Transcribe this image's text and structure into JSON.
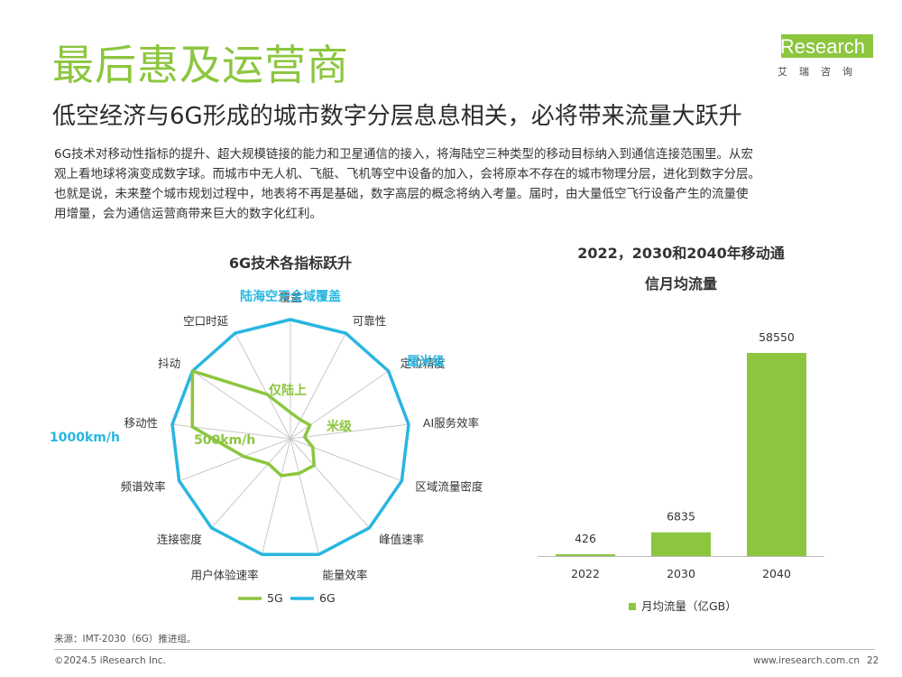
{
  "header": {
    "title": "最后惠及运营商",
    "subtitle": "低空经济与6G形成的城市数字分层息息相关，必将带来流量大跃升"
  },
  "logo": {
    "text": "iResearch",
    "sub": "艾瑞咨询"
  },
  "description": [
    "6G技术对移动性指标的提升、超大规模链接的能力和卫星通信的接入，将海陆空三种类型的移动目标纳入到通信连接范围里。从宏",
    "观上看地球将演变成数字球。而城市中无人机、飞艇、飞机等空中设备的加入，会将原本不存在的城市物理分层，进化到数字分层。",
    "也就是说，未来整个城市规划过程中，地表将不再是基础，数字高层的概念将纳入考量。届时，由大量低空飞行设备产生的流量使",
    "用增量，会为通信运营商带来巨大的数字化红利。"
  ],
  "footer": {
    "source": "来源：IMT-2030（6G）推进组。",
    "copyright": "©2024.5 iResearch Inc.",
    "website": "www.iresearch.com.cn",
    "page": "22"
  },
  "colors": {
    "green": "#8cc63f",
    "cyan": "#29b6e0",
    "text": "#333333",
    "grid": "#bbbbbb"
  },
  "chart_data": [
    {
      "type": "radar",
      "title": "6G技术各指标跃升",
      "axes": [
        "覆盖",
        "可靠性",
        "定位精度",
        "AI服务效率",
        "区域流量密度",
        "峰值速率",
        "能量效率",
        "用户体验速率",
        "连接密度",
        "频谱效率",
        "移动性",
        "抖动",
        "空口时延"
      ],
      "series": [
        {
          "name": "5G",
          "color": "#8cc63f",
          "values": [
            0.22,
            0.18,
            0.2,
            0.12,
            0.2,
            0.3,
            0.3,
            0.32,
            0.28,
            0.42,
            0.83,
            1.0,
            0.42
          ]
        },
        {
          "name": "6G",
          "color": "#29b6e0",
          "values": [
            1,
            1,
            1,
            1,
            1,
            1,
            1,
            1,
            1,
            1,
            1,
            1,
            1
          ]
        }
      ],
      "annotations": {
        "coverage": "陆海空天全域覆盖",
        "coverage_5g": "仅陆上",
        "positioning_6g": "厘米级",
        "positioning_5g": "米级",
        "mobility_6g": "1000km/h",
        "mobility_5g": "500km/h"
      }
    },
    {
      "type": "bar",
      "title": [
        "2022，2030和2040年移动通",
        "信月均流量"
      ],
      "categories": [
        "2022",
        "2030",
        "2040"
      ],
      "series": [
        {
          "name": "月均流量（亿GB）",
          "values": [
            426,
            6835,
            58550
          ]
        }
      ],
      "ylim": [
        0,
        58550
      ]
    }
  ]
}
